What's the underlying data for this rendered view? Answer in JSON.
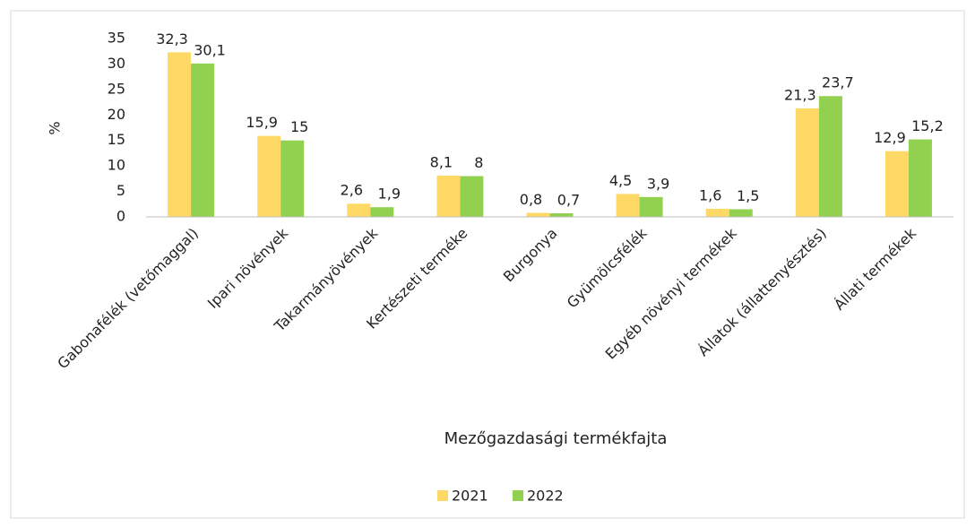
{
  "chart_data": {
    "type": "bar",
    "x_label": "Mezőgazdasági termékfajta",
    "y_label": "%",
    "categories": [
      "Gabonafélék (vetőmaggal)",
      "Ipari növények",
      "Takarmányövények",
      "Kertészeti terméke",
      "Burgonya",
      "Gyümölcsfélék",
      "Egyéb növényi termékek",
      "Állatok (állattenyésztés)",
      "Állati termékek"
    ],
    "series": [
      {
        "name": "2021",
        "color": "#ffd966",
        "values": [
          32.3,
          15.9,
          2.6,
          8.1,
          0.8,
          4.5,
          1.6,
          21.3,
          12.9
        ],
        "value_labels": [
          "32,3",
          "15,9",
          "2,6",
          "8,1",
          "0,8",
          "4,5",
          "1,6",
          "21,3",
          "12,9"
        ]
      },
      {
        "name": "2022",
        "color": "#92d050",
        "values": [
          30.1,
          15,
          1.9,
          8,
          0.7,
          3.9,
          1.5,
          23.7,
          15.2
        ],
        "value_labels": [
          "30,1",
          "15",
          "1,9",
          "8",
          "0,7",
          "3,9",
          "1,5",
          "23,7",
          "15,2"
        ]
      }
    ],
    "ylim": [
      0,
      35
    ],
    "yticks": [
      0,
      5,
      10,
      15,
      20,
      25,
      30,
      35
    ],
    "grid": false,
    "legend": "bottom"
  }
}
